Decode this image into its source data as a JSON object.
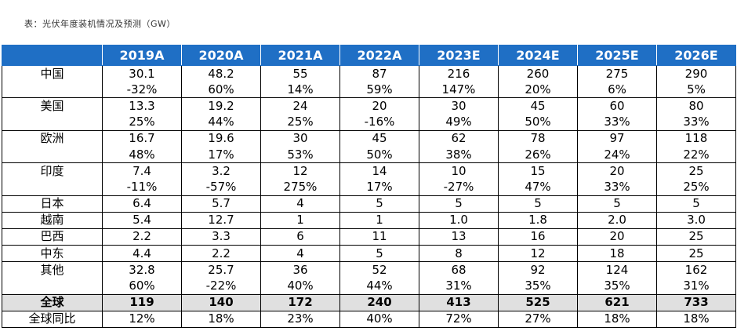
{
  "caption": "表：光伏年度装机情况及预测（GW）",
  "table": {
    "headers": [
      "",
      "2019A",
      "2020A",
      "2021A",
      "2022A",
      "2023E",
      "2024E",
      "2025E",
      "2026E"
    ],
    "groups": [
      {
        "rows": [
          [
            "中国",
            "30.1",
            "48.2",
            "55",
            "87",
            "216",
            "260",
            "275",
            "290"
          ],
          [
            "",
            "-32%",
            "60%",
            "14%",
            "59%",
            "147%",
            "20%",
            "6%",
            "5%"
          ]
        ]
      },
      {
        "rows": [
          [
            "美国",
            "13.3",
            "19.2",
            "24",
            "20",
            "30",
            "45",
            "60",
            "80"
          ],
          [
            "",
            "25%",
            "44%",
            "25%",
            "-16%",
            "49%",
            "50%",
            "33%",
            "33%"
          ]
        ]
      },
      {
        "rows": [
          [
            "欧洲",
            "16.7",
            "19.6",
            "30",
            "45",
            "62",
            "78",
            "97",
            "118"
          ],
          [
            "",
            "48%",
            "17%",
            "53%",
            "50%",
            "38%",
            "26%",
            "24%",
            "22%"
          ]
        ]
      },
      {
        "rows": [
          [
            "印度",
            "7.4",
            "3.2",
            "12",
            "14",
            "10",
            "15",
            "20",
            "25"
          ],
          [
            "",
            "-11%",
            "-57%",
            "275%",
            "17%",
            "-27%",
            "47%",
            "33%",
            "25%"
          ]
        ]
      },
      {
        "rows": [
          [
            "日本",
            "6.4",
            "5.7",
            "4",
            "5",
            "5",
            "5",
            "5",
            "5"
          ]
        ]
      },
      {
        "rows": [
          [
            "越南",
            "5.4",
            "12.7",
            "1",
            "1",
            "1.0",
            "1.8",
            "2.0",
            "3.0"
          ]
        ]
      },
      {
        "rows": [
          [
            "巴西",
            "2.2",
            "3.3",
            "6",
            "11",
            "13",
            "16",
            "20",
            "25"
          ]
        ]
      },
      {
        "rows": [
          [
            "中东",
            "4.4",
            "2.2",
            "4",
            "5",
            "8",
            "12",
            "18",
            "25"
          ]
        ]
      },
      {
        "rows": [
          [
            "其他",
            "32.8",
            "25.7",
            "36",
            "52",
            "68",
            "92",
            "124",
            "162"
          ],
          [
            "",
            "60%",
            "-22%",
            "40%",
            "44%",
            "31%",
            "35%",
            "35%",
            "31%"
          ]
        ]
      }
    ],
    "total": [
      "全球",
      "119",
      "140",
      "172",
      "240",
      "413",
      "525",
      "621",
      "733"
    ],
    "yoy": [
      "全球同比",
      "12%",
      "18%",
      "23%",
      "40%",
      "72%",
      "27%",
      "18%",
      "18%"
    ]
  }
}
